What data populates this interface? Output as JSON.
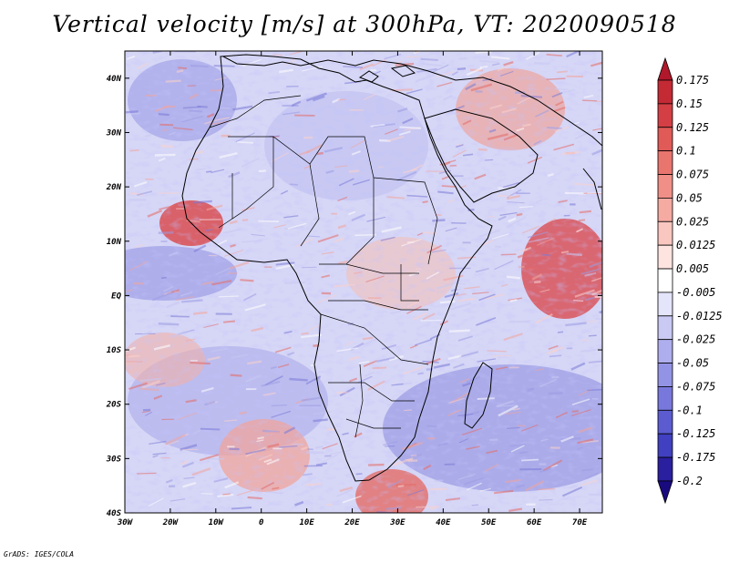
{
  "title": "Vertical velocity [m/s] at 300hPa, VT: 2020090518",
  "footer": "GrADS: IGES/COLA",
  "map": {
    "lon_range": [
      -30,
      75
    ],
    "lat_range": [
      -40,
      45
    ],
    "lon_ticks": [
      {
        "value": -30,
        "label": "30W"
      },
      {
        "value": -20,
        "label": "20W"
      },
      {
        "value": -10,
        "label": "10W"
      },
      {
        "value": 0,
        "label": "0"
      },
      {
        "value": 10,
        "label": "10E"
      },
      {
        "value": 20,
        "label": "20E"
      },
      {
        "value": 30,
        "label": "30E"
      },
      {
        "value": 40,
        "label": "40E"
      },
      {
        "value": 50,
        "label": "50E"
      },
      {
        "value": 60,
        "label": "60E"
      },
      {
        "value": 70,
        "label": "70E"
      }
    ],
    "lat_ticks": [
      {
        "value": 40,
        "label": "40N"
      },
      {
        "value": 30,
        "label": "30N"
      },
      {
        "value": 20,
        "label": "20N"
      },
      {
        "value": 10,
        "label": "10N"
      },
      {
        "value": 0,
        "label": "EQ"
      },
      {
        "value": -10,
        "label": "10S"
      },
      {
        "value": -20,
        "label": "20S"
      },
      {
        "value": -30,
        "label": "30S"
      },
      {
        "value": -40,
        "label": "40S"
      }
    ]
  },
  "colorbar": {
    "levels": [
      "0.175",
      "0.15",
      "0.125",
      "0.1",
      "0.075",
      "0.05",
      "0.025",
      "0.0125",
      "0.005",
      "-0.005",
      "-0.0125",
      "-0.025",
      "-0.05",
      "-0.075",
      "-0.1",
      "-0.125",
      "-0.175",
      "-0.2"
    ],
    "colors": [
      "#b2182b",
      "#c42a34",
      "#d33f44",
      "#e05a58",
      "#e9756f",
      "#f08f87",
      "#f5aaa2",
      "#f9c7c0",
      "#fde4e0",
      "#ffffff",
      "#e4e4fb",
      "#c9c9f4",
      "#aeaeee",
      "#9393e6",
      "#7878dc",
      "#5c5cd0",
      "#4040c0",
      "#2a1f9e",
      "#1a0a80"
    ]
  }
}
